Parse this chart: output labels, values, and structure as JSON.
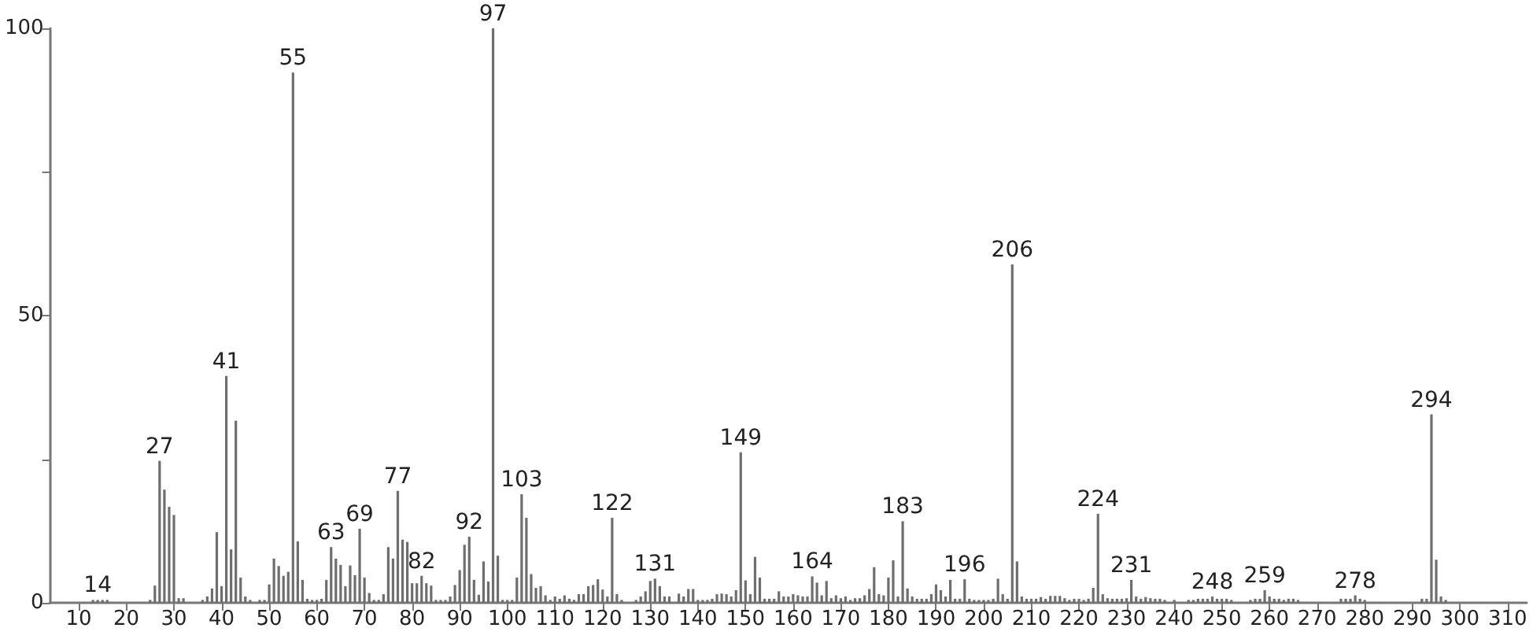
{
  "chart_data": {
    "type": "bar",
    "color": "#6e6e6e",
    "x": [
      13,
      14,
      15,
      16,
      25,
      26,
      27,
      28,
      29,
      30,
      31,
      32,
      36,
      37,
      38,
      39,
      40,
      41,
      42,
      43,
      44,
      45,
      46,
      48,
      49,
      50,
      51,
      52,
      53,
      54,
      55,
      56,
      57,
      58,
      59,
      60,
      61,
      62,
      63,
      64,
      65,
      66,
      67,
      68,
      69,
      70,
      71,
      72,
      73,
      74,
      75,
      76,
      77,
      78,
      79,
      80,
      81,
      82,
      83,
      84,
      85,
      86,
      87,
      88,
      89,
      90,
      91,
      92,
      93,
      94,
      95,
      96,
      97,
      98,
      99,
      100,
      101,
      102,
      103,
      104,
      105,
      106,
      107,
      108,
      109,
      110,
      111,
      112,
      113,
      114,
      115,
      116,
      117,
      118,
      119,
      120,
      121,
      122,
      123,
      124,
      126,
      127,
      128,
      129,
      130,
      131,
      132,
      133,
      134,
      136,
      137,
      138,
      139,
      140,
      141,
      142,
      143,
      144,
      145,
      146,
      147,
      148,
      149,
      150,
      151,
      152,
      153,
      154,
      155,
      156,
      157,
      158,
      159,
      160,
      161,
      162,
      163,
      164,
      165,
      166,
      167,
      168,
      169,
      170,
      171,
      172,
      173,
      174,
      175,
      176,
      177,
      178,
      179,
      180,
      181,
      182,
      183,
      184,
      185,
      186,
      187,
      188,
      189,
      190,
      191,
      192,
      193,
      194,
      195,
      196,
      197,
      198,
      199,
      200,
      201,
      202,
      203,
      204,
      205,
      206,
      207,
      208,
      209,
      210,
      211,
      212,
      213,
      214,
      215,
      216,
      217,
      218,
      219,
      220,
      221,
      222,
      223,
      224,
      225,
      226,
      227,
      228,
      229,
      230,
      231,
      232,
      233,
      234,
      235,
      236,
      237,
      238,
      240,
      243,
      244,
      245,
      246,
      247,
      248,
      249,
      250,
      251,
      252,
      256,
      257,
      258,
      259,
      260,
      261,
      262,
      263,
      264,
      265,
      266,
      275,
      276,
      277,
      278,
      279,
      280,
      292,
      293,
      294,
      295,
      296,
      297
    ],
    "values": [
      0.5,
      0.5,
      0.5,
      0.5,
      0.5,
      3,
      24.7,
      19.7,
      16.7,
      15.3,
      0.8,
      0.8,
      0.5,
      1.1,
      2.5,
      12.3,
      2.9,
      39.5,
      9.3,
      31.7,
      4.4,
      1.1,
      0.5,
      0.5,
      0.5,
      3.2,
      7.7,
      6.4,
      4.7,
      5.4,
      92.3,
      10.7,
      4,
      0.7,
      0.5,
      0.5,
      0.7,
      4,
      9.7,
      7.7,
      6.6,
      2.9,
      6.5,
      4.8,
      12.9,
      4.4,
      1.7,
      0.5,
      0.5,
      1.5,
      9.7,
      7.7,
      19.5,
      11,
      10.6,
      3.4,
      3.4,
      4.7,
      3.4,
      3,
      0.5,
      0.5,
      0.5,
      1.1,
      3.1,
      5.7,
      10.1,
      11.5,
      4,
      1.4,
      7.2,
      3.7,
      100,
      8.2,
      0.5,
      0.5,
      0.5,
      4.4,
      18.9,
      14.8,
      5,
      2.6,
      2.9,
      1.3,
      0.5,
      1.1,
      0.7,
      1.3,
      0.7,
      0.5,
      1.5,
      1.5,
      2.9,
      3.1,
      4.1,
      2.3,
      1.1,
      14.8,
      1.5,
      0.5,
      null,
      0.5,
      1.1,
      2,
      3.8,
      4.2,
      2.9,
      1.1,
      1.1,
      1.6,
      1.1,
      2.4,
      2.4,
      0.5,
      0.5,
      0.5,
      0.7,
      1.5,
      1.6,
      1.5,
      1.1,
      2.2,
      26.2,
      3.9,
      1.5,
      8,
      4.4,
      0.7,
      0.7,
      0.7,
      2,
      1.1,
      1.1,
      1.5,
      1.3,
      1.1,
      1.1,
      4.6,
      3.5,
      1.3,
      3.8,
      0.8,
      1.3,
      0.8,
      1.1,
      0.5,
      0.8,
      0.8,
      1.3,
      2.4,
      6.2,
      1.5,
      1.3,
      4.4,
      7.4,
      1.1,
      14.2,
      2.5,
      1.1,
      0.7,
      0.7,
      0.7,
      1.5,
      3.2,
      2.2,
      1.1,
      4,
      0.7,
      0.7,
      4.1,
      0.7,
      0.5,
      0.5,
      0.5,
      0.5,
      0.7,
      4.2,
      1.5,
      0.7,
      58.9,
      7.2,
      1.1,
      0.7,
      0.7,
      0.7,
      1,
      0.7,
      1.2,
      1.2,
      1.2,
      0.8,
      0.5,
      0.7,
      0.7,
      0.5,
      0.7,
      2.6,
      15.5,
      1.5,
      0.8,
      0.7,
      0.7,
      0.7,
      0.8,
      4,
      1.1,
      0.7,
      1,
      0.8,
      0.7,
      0.7,
      0.5,
      0.5,
      0.5,
      0.5,
      0.7,
      0.7,
      0.7,
      1.1,
      0.7,
      0.7,
      0.7,
      0.5,
      0.5,
      0.7,
      0.7,
      2.2,
      1.1,
      0.7,
      0.7,
      0.5,
      0.7,
      0.7,
      0.5,
      0.7,
      0.7,
      0.7,
      1.3,
      0.7,
      0.5,
      0.7,
      0.7,
      32.8,
      7.5,
      1.1,
      0.5
    ],
    "xlim": [
      4,
      314
    ],
    "xticks": [
      10,
      20,
      30,
      40,
      50,
      60,
      70,
      80,
      90,
      100,
      110,
      120,
      130,
      140,
      150,
      160,
      170,
      180,
      190,
      200,
      210,
      220,
      230,
      240,
      250,
      260,
      270,
      280,
      290,
      300,
      310
    ],
    "ylim": [
      0,
      100
    ],
    "yticks": [
      0,
      {
        "value": 25,
        "label": null
      },
      50,
      {
        "value": 75,
        "label": null
      },
      100
    ],
    "grid": false,
    "annotations": [
      {
        "text": "14",
        "x": 14,
        "y": 0.5
      },
      {
        "text": "27",
        "x": 27,
        "y": 24.7
      },
      {
        "text": "41",
        "x": 41,
        "y": 39.5
      },
      {
        "text": "55",
        "x": 55,
        "y": 92.3
      },
      {
        "text": "63",
        "x": 63,
        "y": 9.7
      },
      {
        "text": "69",
        "x": 69,
        "y": 12.9
      },
      {
        "text": "77",
        "x": 77,
        "y": 19.5
      },
      {
        "text": "82",
        "x": 82,
        "y": 4.7
      },
      {
        "text": "92",
        "x": 92,
        "y": 11.5
      },
      {
        "text": "97",
        "x": 97,
        "y": 100
      },
      {
        "text": "103",
        "x": 103,
        "y": 18.9
      },
      {
        "text": "122",
        "x": 122,
        "y": 14.8
      },
      {
        "text": "131",
        "x": 131,
        "y": 4.2
      },
      {
        "text": "149",
        "x": 149,
        "y": 26.2
      },
      {
        "text": "164",
        "x": 164,
        "y": 4.6
      },
      {
        "text": "183",
        "x": 183,
        "y": 14.2
      },
      {
        "text": "196",
        "x": 196,
        "y": 4.1
      },
      {
        "text": "206",
        "x": 206,
        "y": 58.9
      },
      {
        "text": "224",
        "x": 224,
        "y": 15.5
      },
      {
        "text": "231",
        "x": 231,
        "y": 4
      },
      {
        "text": "248",
        "x": 248,
        "y": 1.1
      },
      {
        "text": "259",
        "x": 259,
        "y": 2.2
      },
      {
        "text": "278",
        "x": 278,
        "y": 1.3
      },
      {
        "text": "294",
        "x": 294,
        "y": 32.8
      }
    ]
  }
}
